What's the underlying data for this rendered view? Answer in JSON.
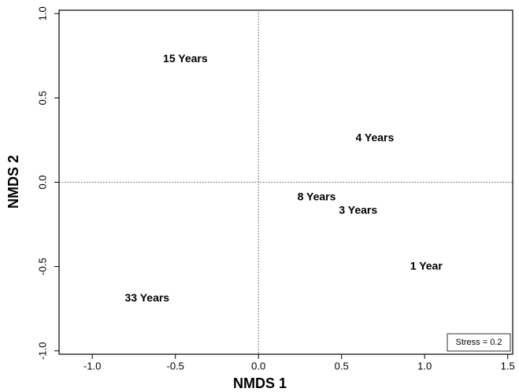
{
  "chart_data": {
    "type": "scatter",
    "x_label": "NMDS 1",
    "y_label": "NMDS 2",
    "points": [
      {
        "label": "15 Years",
        "x": -0.44,
        "y": 0.73
      },
      {
        "label": "4 Years",
        "x": 0.7,
        "y": 0.26
      },
      {
        "label": "8 Years",
        "x": 0.35,
        "y": -0.09
      },
      {
        "label": "3 Years",
        "x": 0.6,
        "y": -0.17
      },
      {
        "label": "1 Year",
        "x": 1.01,
        "y": -0.5
      },
      {
        "label": "33 Years",
        "x": -0.67,
        "y": -0.69
      }
    ],
    "xlim": [
      -1.2,
      1.53
    ],
    "ylim": [
      -1.02,
      1.02
    ],
    "xticks": [
      {
        "value": -1,
        "label": "-1.0"
      },
      -0.5,
      {
        "value": 0,
        "label": "0.0"
      },
      0.5,
      {
        "value": 1,
        "label": "1.0"
      },
      1.5
    ],
    "yticks": [
      {
        "value": -1,
        "label": "-1.0"
      },
      -0.5,
      {
        "value": 0,
        "label": "0.0"
      },
      0.5,
      {
        "value": 1,
        "label": "1.0"
      }
    ],
    "origin_lines": true,
    "annotation": "Stress = 0.2"
  }
}
